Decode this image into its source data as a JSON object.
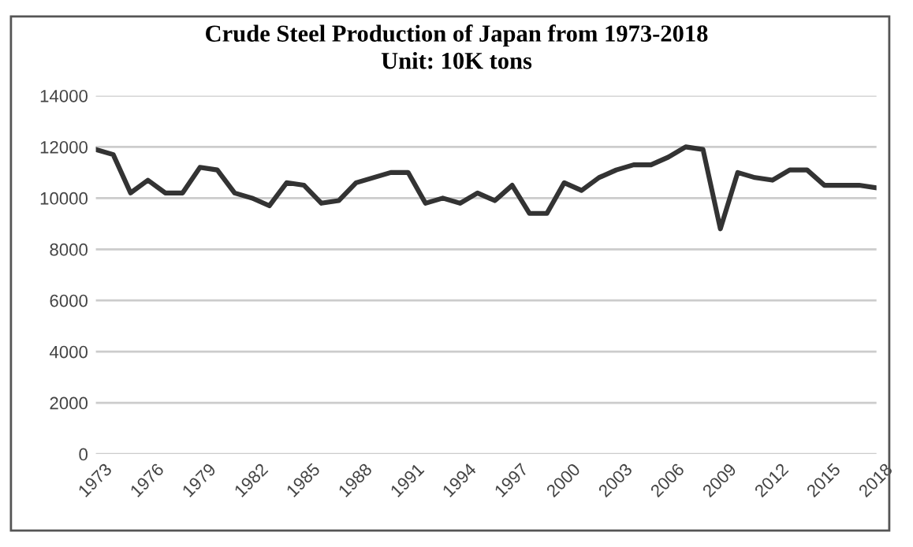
{
  "chart_data": {
    "type": "line",
    "title": "Crude Steel Production of Japan from 1973-2018",
    "subtitle": "Unit: 10K tons",
    "x": [
      1973,
      1974,
      1975,
      1976,
      1977,
      1978,
      1979,
      1980,
      1981,
      1982,
      1983,
      1984,
      1985,
      1986,
      1987,
      1988,
      1989,
      1990,
      1991,
      1992,
      1993,
      1994,
      1995,
      1996,
      1997,
      1998,
      1999,
      2000,
      2001,
      2002,
      2003,
      2004,
      2005,
      2006,
      2007,
      2008,
      2009,
      2010,
      2011,
      2012,
      2013,
      2014,
      2015,
      2016,
      2017,
      2018
    ],
    "series": [
      {
        "color": "#333333",
        "values": [
          11900,
          11700,
          10200,
          10700,
          10200,
          10200,
          11200,
          11100,
          10200,
          10000,
          9700,
          10600,
          10500,
          9800,
          9900,
          10600,
          10800,
          11000,
          11000,
          9800,
          10000,
          9800,
          10200,
          9900,
          10500,
          9400,
          9400,
          10600,
          10300,
          10800,
          11100,
          11300,
          11300,
          11600,
          12000,
          11900,
          8800,
          11000,
          10800,
          10700,
          11100,
          11100,
          10500,
          10500,
          10500,
          10400
        ]
      }
    ],
    "xlim": [
      1973,
      2018
    ],
    "xticks": [
      1973,
      1976,
      1979,
      1982,
      1985,
      1988,
      1991,
      1994,
      1997,
      2000,
      2003,
      2006,
      2009,
      2012,
      2015,
      2018
    ],
    "ylim": [
      0,
      14000
    ],
    "yticks": [
      0,
      2000,
      4000,
      6000,
      8000,
      10000,
      12000,
      14000
    ],
    "grid": "y",
    "marker": "none",
    "line_style": "solid"
  }
}
